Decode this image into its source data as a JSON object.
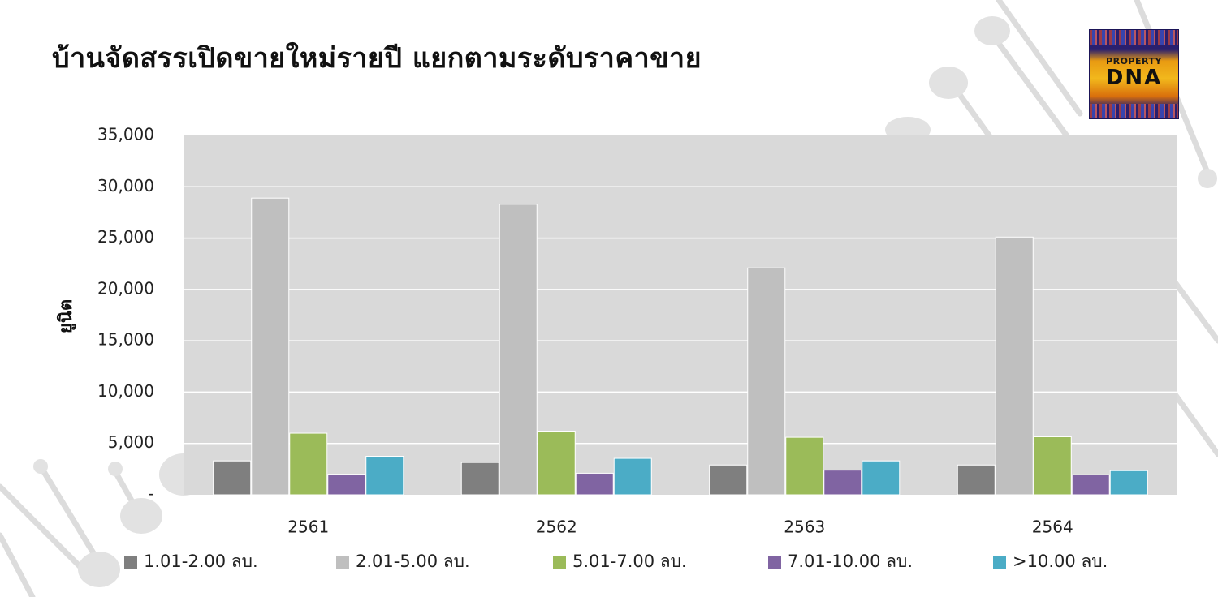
{
  "title": "บ้านจัดสรรเปิดขายใหม่รายปี แยกตามระดับราคาขาย",
  "logo": {
    "line1": "PROPERTY",
    "line2": "DNA"
  },
  "chart_data": {
    "type": "bar",
    "title": "บ้านจัดสรรเปิดขายใหม่รายปี แยกตามระดับราคาขาย",
    "xlabel": "",
    "ylabel": "ยูนิต",
    "ylim": [
      0,
      35000
    ],
    "yticks": [
      0,
      5000,
      10000,
      15000,
      20000,
      25000,
      30000,
      35000
    ],
    "ytick_labels": [
      "-",
      "5,000",
      "10,000",
      "15,000",
      "20,000",
      "25,000",
      "30,000",
      "35,000"
    ],
    "grid": true,
    "legend_position": "bottom",
    "categories": [
      "2561",
      "2562",
      "2563",
      "2564"
    ],
    "series": [
      {
        "name": "1.01-2.00 ลบ.",
        "color": "#7f7f7f",
        "values": [
          3300,
          3150,
          2900,
          2900
        ]
      },
      {
        "name": "2.01-5.00 ลบ.",
        "color": "#bfbfbf",
        "values": [
          28900,
          28300,
          22100,
          25100
        ]
      },
      {
        "name": "5.01-7.00 ลบ.",
        "color": "#9bbb59",
        "values": [
          6000,
          6200,
          5600,
          5650
        ]
      },
      {
        "name": "7.01-10.00 ลบ.",
        "color": "#8064a2",
        "values": [
          2000,
          2100,
          2400,
          1950
        ]
      },
      {
        "name": ">10.00 ลบ.",
        "color": "#4bacc6",
        "values": [
          3750,
          3550,
          3300,
          2350
        ]
      }
    ]
  }
}
